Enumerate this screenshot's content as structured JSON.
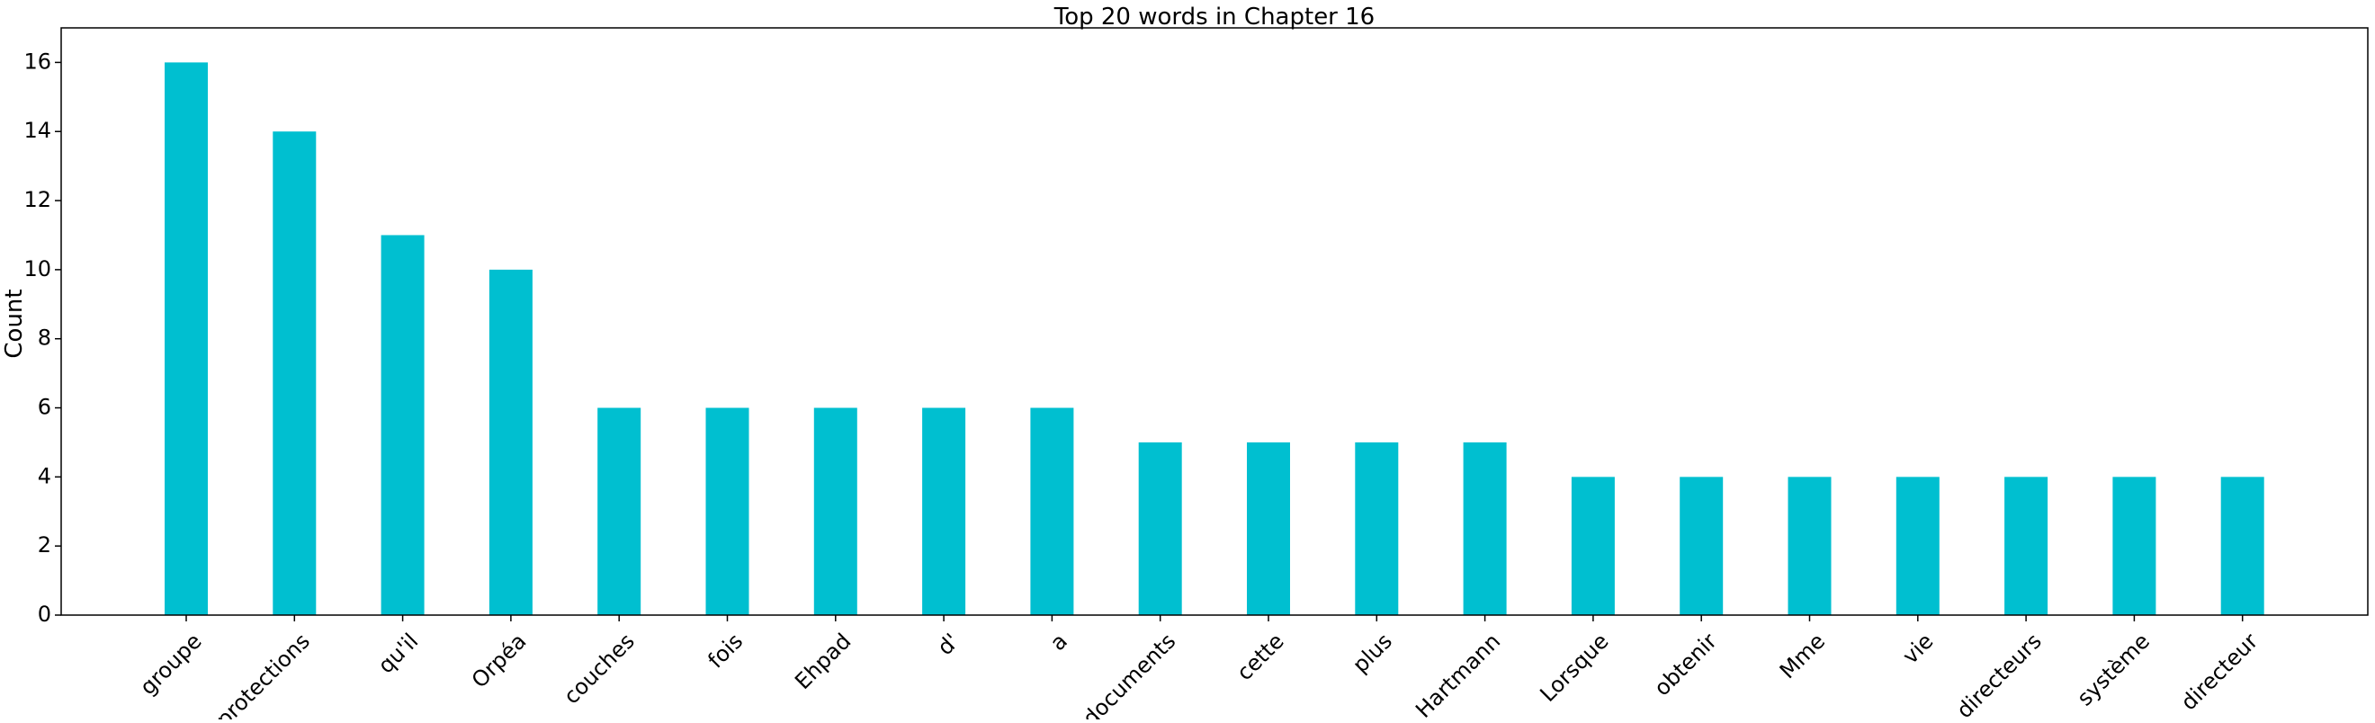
{
  "chart_data": {
    "type": "bar",
    "title": "Top 20 words in Chapter 16",
    "xlabel": "",
    "ylabel": "Count",
    "ylim": [
      0,
      17
    ],
    "yticks": [
      0,
      2,
      4,
      6,
      8,
      10,
      12,
      14,
      16
    ],
    "grid": false,
    "categories": [
      "groupe",
      "protections",
      "qu'il",
      "Orpéa",
      "couches",
      "fois",
      "Ehpad",
      "d'",
      "a",
      "documents",
      "cette",
      "plus",
      "Hartmann",
      "Lorsque",
      "obtenir",
      "Mme",
      "vie",
      "directeurs",
      "système",
      "directeur"
    ],
    "values": [
      16,
      14,
      11,
      10,
      6,
      6,
      6,
      6,
      6,
      5,
      5,
      5,
      5,
      4,
      4,
      4,
      4,
      4,
      4,
      4
    ],
    "bar_color": "#00bfd0"
  }
}
